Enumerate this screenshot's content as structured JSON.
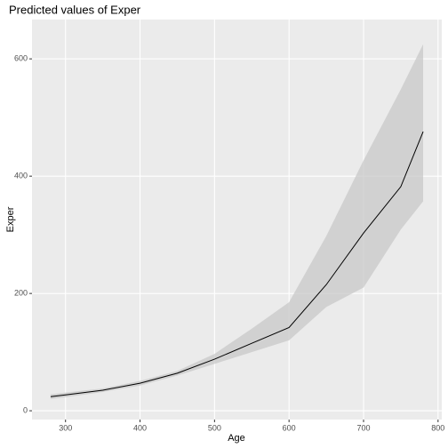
{
  "chart_data": {
    "type": "ribbon-line",
    "title": "Predicted values of Exper",
    "x_label": "Age",
    "y_label": "Exper",
    "x": [
      280,
      300,
      350,
      400,
      450,
      500,
      550,
      600,
      650,
      700,
      750,
      780
    ],
    "values": [
      24,
      27,
      35,
      47,
      64,
      88,
      115,
      142,
      215,
      303,
      382,
      476
    ],
    "lower": [
      20,
      23,
      32,
      43,
      60,
      80,
      100,
      120,
      177,
      210,
      309,
      357
    ],
    "upper": [
      28,
      31,
      38,
      51,
      68,
      97,
      140,
      185,
      298,
      427,
      548,
      625
    ],
    "color": "#000000",
    "ribbon_color": "#c8c8c8",
    "xlim": [
      255,
      805
    ],
    "ylim": [
      -15,
      667
    ],
    "xticks": [
      300,
      400,
      500,
      600,
      700,
      800
    ],
    "yticks": [
      0,
      200,
      400,
      600
    ],
    "grid": true
  }
}
